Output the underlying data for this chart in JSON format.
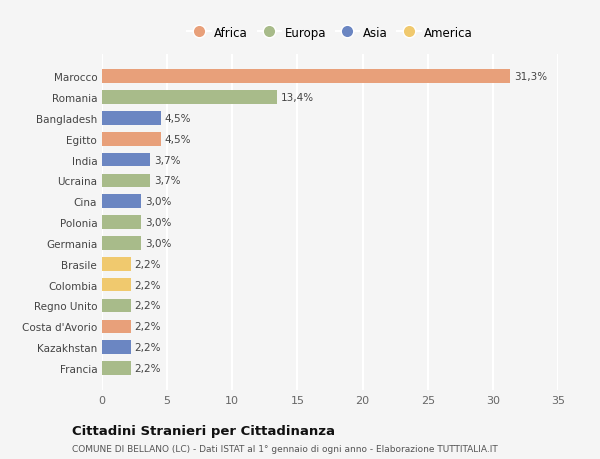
{
  "categories": [
    "Francia",
    "Kazakhstan",
    "Costa d'Avorio",
    "Regno Unito",
    "Colombia",
    "Brasile",
    "Germania",
    "Polonia",
    "Cina",
    "Ucraina",
    "India",
    "Egitto",
    "Bangladesh",
    "Romania",
    "Marocco"
  ],
  "values": [
    2.2,
    2.2,
    2.2,
    2.2,
    2.2,
    2.2,
    3.0,
    3.0,
    3.0,
    3.7,
    3.7,
    4.5,
    4.5,
    13.4,
    31.3
  ],
  "colors": [
    "#a8bb8a",
    "#6b86c2",
    "#e8a07a",
    "#a8bb8a",
    "#f0c96e",
    "#f0c96e",
    "#a8bb8a",
    "#a8bb8a",
    "#6b86c2",
    "#a8bb8a",
    "#6b86c2",
    "#e8a07a",
    "#6b86c2",
    "#a8bb8a",
    "#e8a07a"
  ],
  "labels": [
    "2,2%",
    "2,2%",
    "2,2%",
    "2,2%",
    "2,2%",
    "2,2%",
    "3,0%",
    "3,0%",
    "3,0%",
    "3,7%",
    "3,7%",
    "4,5%",
    "4,5%",
    "13,4%",
    "31,3%"
  ],
  "legend": [
    {
      "label": "Africa",
      "color": "#e8a07a"
    },
    {
      "label": "Europa",
      "color": "#a8bb8a"
    },
    {
      "label": "Asia",
      "color": "#6b86c2"
    },
    {
      "label": "America",
      "color": "#f0c96e"
    }
  ],
  "xlim": [
    0,
    35
  ],
  "xticks": [
    0,
    5,
    10,
    15,
    20,
    25,
    30,
    35
  ],
  "title": "Cittadini Stranieri per Cittadinanza",
  "subtitle": "COMUNE DI BELLANO (LC) - Dati ISTAT al 1° gennaio di ogni anno - Elaborazione TUTTITALIA.IT",
  "background_color": "#f5f5f5",
  "grid_color": "#ffffff",
  "bar_height": 0.65,
  "label_fontsize": 7.5,
  "ytick_fontsize": 7.5,
  "xtick_fontsize": 8
}
